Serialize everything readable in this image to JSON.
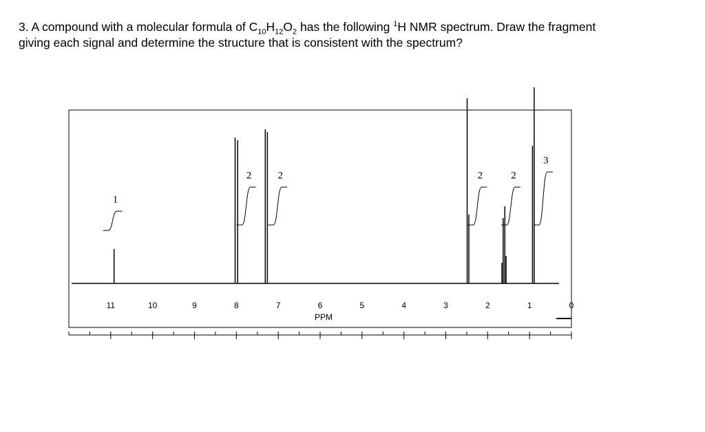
{
  "question": {
    "line1": [
      {
        "text": "3. A compound with a molecular formula of C",
        "style": "normal"
      },
      {
        "text": "10",
        "style": "sub"
      },
      {
        "text": "H",
        "style": "normal"
      },
      {
        "text": "12",
        "style": "sub"
      },
      {
        "text": "O",
        "style": "normal"
      },
      {
        "text": "2",
        "style": "sub"
      },
      {
        "text": " has the following ",
        "style": "normal"
      },
      {
        "text": "1",
        "style": "sup"
      },
      {
        "text": "H NMR spectrum. Draw the fragment",
        "style": "normal"
      }
    ],
    "line2": "giving each signal and determine the structure that is consistent with the spectrum?"
  },
  "chart_data": {
    "type": "spectrum",
    "xlabel": "PPM",
    "xlim": [
      12,
      0
    ],
    "xticks": [
      11,
      10,
      9,
      8,
      7,
      6,
      5,
      4,
      3,
      2,
      1,
      0
    ],
    "ylim": [
      0,
      300
    ],
    "peaks": {
      "x": [
        10.92,
        8.03,
        7.97,
        7.31,
        7.26,
        2.49,
        2.45,
        1.66,
        1.63,
        1.59,
        1.56,
        0.93,
        0.89
      ],
      "values": [
        50,
        212,
        208,
        224,
        220,
        269,
        100,
        30,
        95,
        112,
        40,
        200,
        285
      ]
    },
    "integrals": {
      "x": [
        10.89,
        7.7,
        6.95,
        2.18,
        1.38,
        0.61
      ],
      "values": [
        1,
        2,
        2,
        2,
        2,
        3
      ]
    }
  }
}
